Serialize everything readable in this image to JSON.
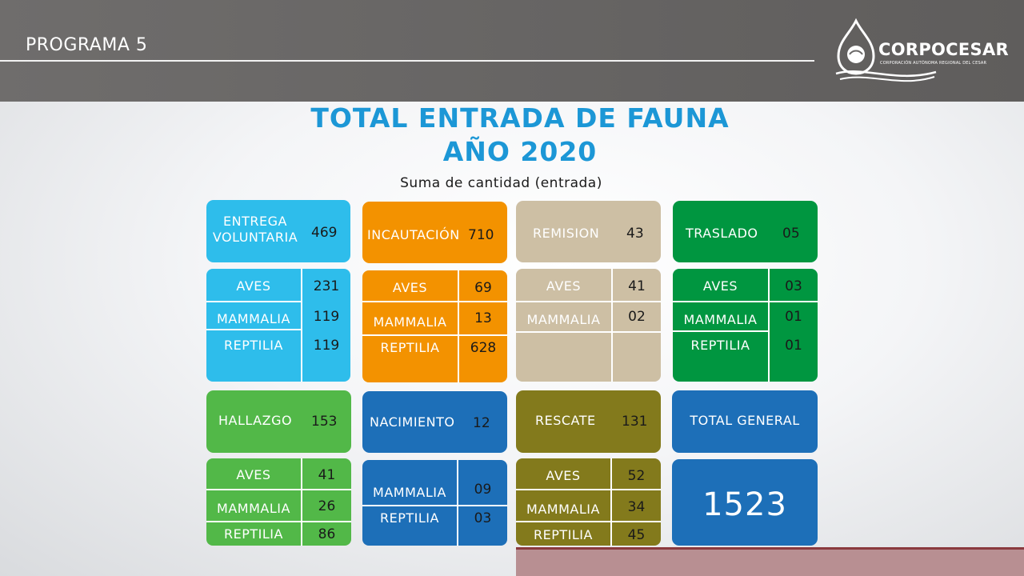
{
  "header": {
    "program": "PROGRAMA 5",
    "logo_name": "CORPOCESAR",
    "logo_sub": "CORPORACIÓN AUTÓNOMA REGIONAL DEL CESAR"
  },
  "title": {
    "line1": "TOTAL ENTRADA DE FAUNA",
    "line2": "AÑO 2020",
    "subtitle": "Suma de cantidad (entrada)"
  },
  "categories": {
    "entrega": {
      "label_1": "ENTREGA",
      "label_2": "VOLUNTARIA",
      "value": "469",
      "rows": [
        {
          "label": "AVES",
          "value": "231"
        },
        {
          "label": "MAMMALIA",
          "value": "119"
        },
        {
          "label": "REPTILIA",
          "value": "119"
        }
      ]
    },
    "incautacion": {
      "label": "INCAUTACIÓN",
      "value": "710",
      "rows": [
        {
          "label": "AVES",
          "value": "69"
        },
        {
          "label": "MAMMALIA",
          "value": "13"
        },
        {
          "label": "REPTILIA",
          "value": "628"
        }
      ]
    },
    "remision": {
      "label": "REMISION",
      "value": "43",
      "rows": [
        {
          "label": "AVES",
          "value": "41"
        },
        {
          "label": "MAMMALIA",
          "value": "02"
        }
      ]
    },
    "traslado": {
      "label": "TRASLADO",
      "value": "05",
      "rows": [
        {
          "label": "AVES",
          "value": "03"
        },
        {
          "label": "MAMMALIA",
          "value": "01"
        },
        {
          "label": "REPTILIA",
          "value": "01"
        }
      ]
    },
    "hallazgo": {
      "label": "HALLAZGO",
      "value": "153",
      "rows": [
        {
          "label": "AVES",
          "value": "41"
        },
        {
          "label": "MAMMALIA",
          "value": "26"
        },
        {
          "label": "REPTILIA",
          "value": "86"
        }
      ]
    },
    "nacimiento": {
      "label": "NACIMIENTO",
      "value": "12",
      "rows": [
        {
          "label": "MAMMALIA",
          "value": "09"
        },
        {
          "label": "REPTILIA",
          "value": "03"
        }
      ]
    },
    "rescate": {
      "label": "RESCATE",
      "value": "131",
      "rows": [
        {
          "label": "AVES",
          "value": "52"
        },
        {
          "label": "MAMMALIA",
          "value": "34"
        },
        {
          "label": "REPTILIA",
          "value": "45"
        }
      ]
    }
  },
  "total": {
    "label": "TOTAL GENERAL",
    "value": "1523"
  },
  "colors": {
    "title": "#1c97d6",
    "entrega": "#2ebdeb",
    "incautacion": "#f39200",
    "remision": "#cdbfa4",
    "traslado": "#009640",
    "hallazgo": "#52b848",
    "nacimiento": "#1d6fb8",
    "rescate": "#837a1c",
    "total": "#1d6fb8"
  }
}
